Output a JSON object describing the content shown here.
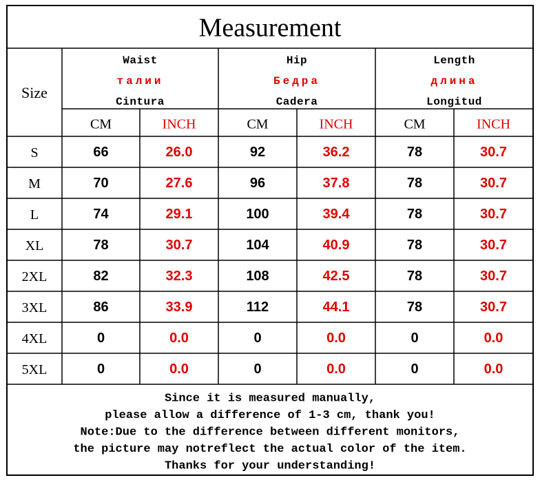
{
  "title": "Measurement",
  "header": {
    "size": "Size",
    "groups": [
      {
        "lines": [
          "Waist",
          "талии",
          "Cintura"
        ]
      },
      {
        "lines": [
          "Hip",
          "Бедра",
          "Cadera"
        ]
      },
      {
        "lines": [
          "Length",
          "длина",
          "Longitud"
        ]
      }
    ],
    "units": [
      "CM",
      "INCH",
      "CM",
      "INCH",
      "CM",
      "INCH"
    ]
  },
  "table": {
    "rows": [
      [
        "S",
        "66",
        "26.0",
        "92",
        "36.2",
        "78",
        "30.7"
      ],
      [
        "M",
        "70",
        "27.6",
        "96",
        "37.8",
        "78",
        "30.7"
      ],
      [
        "L",
        "74",
        "29.1",
        "100",
        "39.4",
        "78",
        "30.7"
      ],
      [
        "XL",
        "78",
        "30.7",
        "104",
        "40.9",
        "78",
        "30.7"
      ],
      [
        "2XL",
        "82",
        "32.3",
        "108",
        "42.5",
        "78",
        "30.7"
      ],
      [
        "3XL",
        "86",
        "33.9",
        "112",
        "44.1",
        "78",
        "30.7"
      ],
      [
        "4XL",
        "0",
        "0.0",
        "0",
        "0.0",
        "0",
        "0.0"
      ],
      [
        "5XL",
        "0",
        "0.0",
        "0",
        "0.0",
        "0",
        "0.0"
      ]
    ]
  },
  "note": {
    "lines": [
      "Since it is measured manually,",
      "please allow a difference of 1-3 cm, thank you!",
      "Note:Due to the difference between different monitors,",
      "the picture may notreflect the actual color of the item.",
      "Thanks for your understanding!"
    ]
  }
}
